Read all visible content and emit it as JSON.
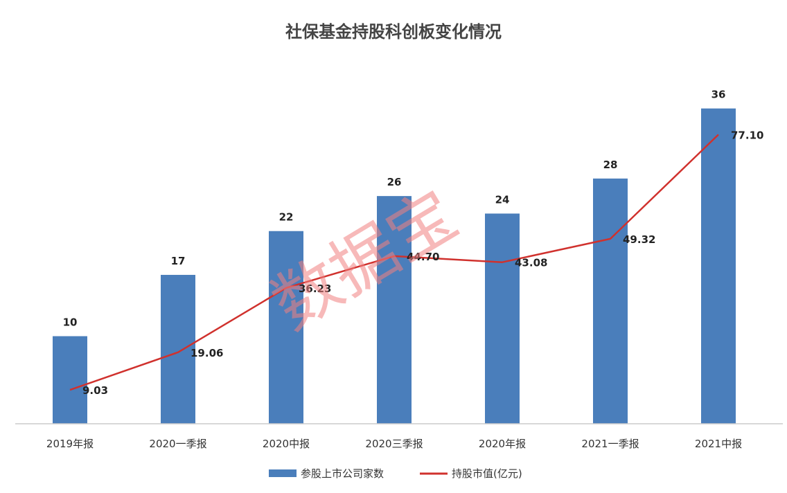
{
  "chart_data": {
    "type": "bar",
    "title": "社保基金持股科创板变化情况",
    "categories": [
      "2019年报",
      "2020一季报",
      "2020中报",
      "2020三季报",
      "2020年报",
      "2021一季报",
      "2021中报"
    ],
    "series": [
      {
        "name": "参股上市公司家数",
        "type": "bar",
        "color": "#4a7ebb",
        "values": [
          10,
          17,
          22,
          26,
          24,
          28,
          36
        ],
        "labels": [
          "10",
          "17",
          "22",
          "26",
          "24",
          "28",
          "36"
        ]
      },
      {
        "name": "持股市值(亿元)",
        "type": "line",
        "color": "#d0312d",
        "values": [
          9.03,
          19.06,
          36.23,
          44.7,
          43.08,
          49.32,
          77.1
        ],
        "labels": [
          "9.03",
          "19.06",
          "36.23",
          "44.70",
          "43.08",
          "49.32",
          "77.10"
        ]
      }
    ],
    "bar_axis_range": [
      0,
      37
    ],
    "line_axis_range": [
      0,
      86.4
    ],
    "grid": false,
    "legend_position": "bottom",
    "watermark": "数据宝"
  }
}
